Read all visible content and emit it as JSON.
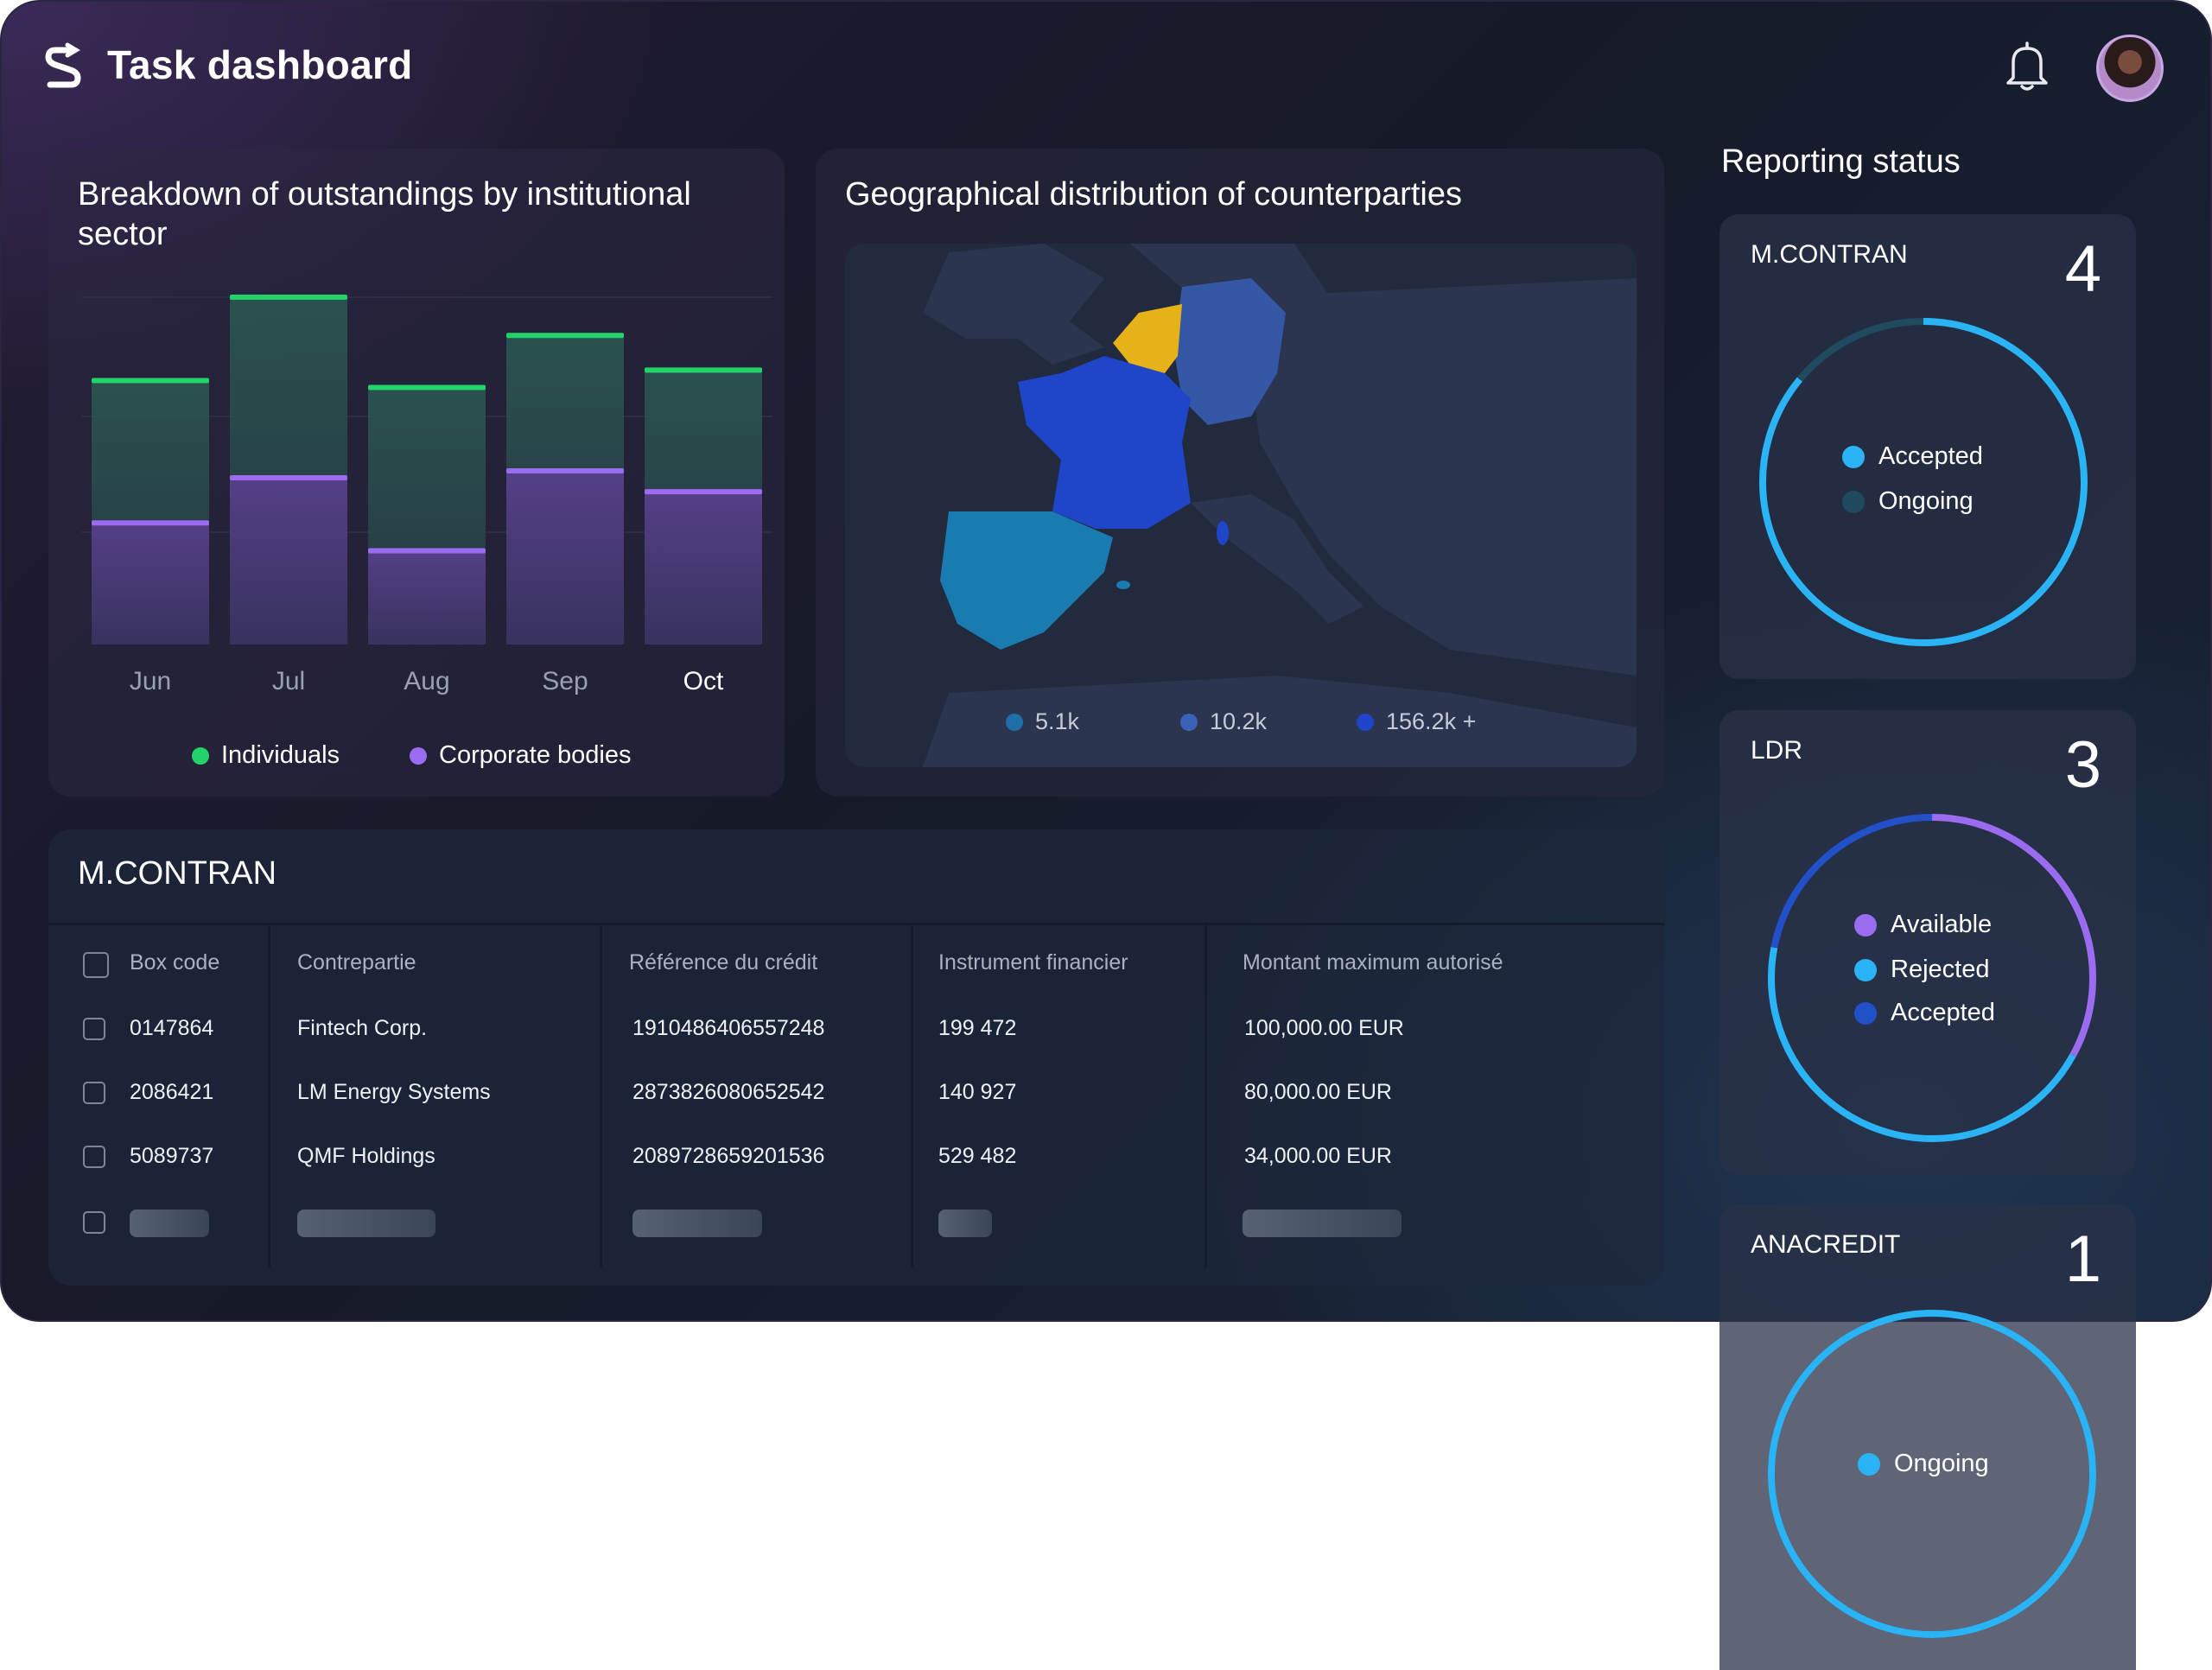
{
  "app": {
    "title": "Task dashboard",
    "logo_icon": "s-logo-icon",
    "notifications_icon": "bell-icon"
  },
  "bar_panel": {
    "title": "Breakdown of outstandings by institutional sector",
    "legend": [
      {
        "label": "Individuals",
        "color": "#22d36a"
      },
      {
        "label": "Corporate bodies",
        "color": "#9b6cf0"
      }
    ]
  },
  "chart_data": {
    "type": "bar",
    "categories": [
      "Jun",
      "Jul",
      "Aug",
      "Sep",
      "Oct"
    ],
    "highlighted_category": "Oct",
    "series": [
      {
        "name": "Individuals",
        "values": [
          0.76,
          1.0,
          0.74,
          0.89,
          0.79
        ],
        "color": "#22d36a"
      },
      {
        "name": "Corporate bodies",
        "values": [
          0.35,
          0.48,
          0.27,
          0.5,
          0.44
        ],
        "color": "#9b6cf0"
      }
    ],
    "ylim": [
      0,
      1
    ]
  },
  "map_panel": {
    "title": "Geographical distribution of counterparties",
    "legend": [
      {
        "label": "5.1k",
        "color": "#1e6fa8"
      },
      {
        "label": "10.2k",
        "color": "#3a63b8"
      },
      {
        "label": "156.2k +",
        "color": "#1f43c9"
      }
    ],
    "highlight_colors": {
      "france": "#1f45c8",
      "germany": "#3558a6",
      "benelux": "#e6b21a",
      "iberia": "#1a7bb0",
      "base": "#2b3550"
    }
  },
  "table": {
    "title": "M.CONTRAN",
    "columns": [
      "Box code",
      "Contrepartie",
      "Référence du crédit",
      "Instrument financier",
      "Montant maximum autorisé"
    ],
    "rows": [
      [
        "0147864",
        "Fintech Corp.",
        "1910486406557248",
        "199 472",
        "100,000.00 EUR"
      ],
      [
        "2086421",
        "LM Energy Systems",
        "2873826080652542",
        "140 927",
        "80,000.00 EUR"
      ],
      [
        "5089737",
        "QMF Holdings",
        "2089728659201536",
        "529 482",
        "34,000.00 EUR"
      ]
    ]
  },
  "reporting": {
    "title": "Reporting status",
    "cards": [
      {
        "name": "M.CONTRAN",
        "count": "4",
        "segments": [
          {
            "label": "Accepted",
            "value": 0.86,
            "color": "#2ab4f5"
          },
          {
            "label": "Ongoing",
            "value": 0.14,
            "color": "#1f4a60"
          }
        ]
      },
      {
        "name": "LDR",
        "count": "3",
        "segments": [
          {
            "label": "Available",
            "value": 0.33,
            "color": "#9b6cf0"
          },
          {
            "label": "Rejected",
            "value": 0.45,
            "color": "#2ab4f5"
          },
          {
            "label": "Accepted",
            "value": 0.22,
            "color": "#2150c8"
          }
        ]
      },
      {
        "name": "ANACREDIT",
        "count": "1",
        "segments": [
          {
            "label": "Ongoing",
            "value": 1.0,
            "color": "#2ab4f5"
          }
        ]
      }
    ]
  }
}
